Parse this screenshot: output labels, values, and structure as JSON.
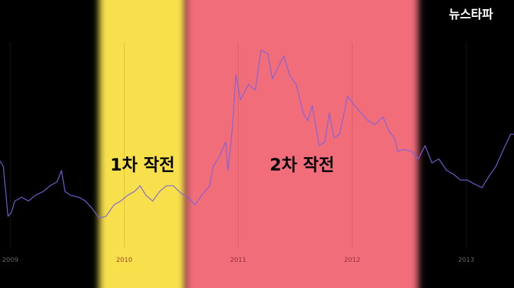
{
  "chart_data": {
    "type": "line",
    "logo": "뉴스타파",
    "x": [
      2008.91,
      2008.94,
      2008.98,
      2009.01,
      2009.04,
      2009.1,
      2009.16,
      2009.22,
      2009.29,
      2009.35,
      2009.41,
      2009.45,
      2009.48,
      2009.53,
      2009.6,
      2009.66,
      2009.72,
      2009.78,
      2009.84,
      2009.91,
      2009.97,
      2010.03,
      2010.09,
      2010.14,
      2010.19,
      2010.25,
      2010.31,
      2010.37,
      2010.43,
      2010.5,
      2010.56,
      2010.62,
      2010.68,
      2010.75,
      2010.78,
      2010.84,
      2010.89,
      2010.91,
      2010.95,
      2010.98,
      2011.02,
      2011.09,
      2011.15,
      2011.2,
      2011.26,
      2011.3,
      2011.35,
      2011.4,
      2011.45,
      2011.51,
      2011.57,
      2011.61,
      2011.65,
      2011.71,
      2011.76,
      2011.8,
      2011.84,
      2011.89,
      2011.96,
      2012.02,
      2012.08,
      2012.14,
      2012.2,
      2012.27,
      2012.32,
      2012.37,
      2012.4,
      2012.45,
      2012.52,
      2012.58,
      2012.64,
      2012.7,
      2012.76,
      2012.83,
      2012.89,
      2012.95,
      2013.01,
      2013.07,
      2013.14,
      2013.2,
      2013.26,
      2013.32,
      2013.39,
      2013.42
    ],
    "series": [
      {
        "color": "#7b63e0",
        "values": [
          38,
          35,
          9,
          11,
          17,
          19,
          17,
          20,
          22,
          25,
          27,
          33,
          22,
          20,
          19,
          17,
          13,
          8,
          9,
          15,
          17,
          20,
          22,
          25,
          20,
          17,
          22,
          25,
          25,
          21,
          19,
          15,
          20,
          25,
          35,
          41,
          48,
          33,
          56,
          83,
          70,
          78,
          75,
          96,
          94,
          81,
          87,
          93,
          83,
          78,
          63,
          59,
          67,
          46,
          48,
          63,
          50,
          52,
          72,
          67,
          63,
          59,
          57,
          61,
          54,
          50,
          43,
          44,
          43,
          39,
          46,
          37,
          39,
          33,
          31,
          28,
          28,
          26,
          24,
          30,
          35,
          43,
          52,
          52
        ]
      }
    ],
    "bands": [
      {
        "label": "1차 작전",
        "start": 2009.78,
        "end": 2010.54,
        "color": "#f7e04b"
      },
      {
        "label": "2차 작전",
        "start": 2010.54,
        "end": 2012.58,
        "color": "#f26d7a"
      }
    ],
    "xlim": [
      2008.91,
      2013.42
    ],
    "xticks": [
      2009,
      2010,
      2011,
      2012,
      2013
    ],
    "ylim": [
      0,
      100
    ],
    "grid": true
  }
}
